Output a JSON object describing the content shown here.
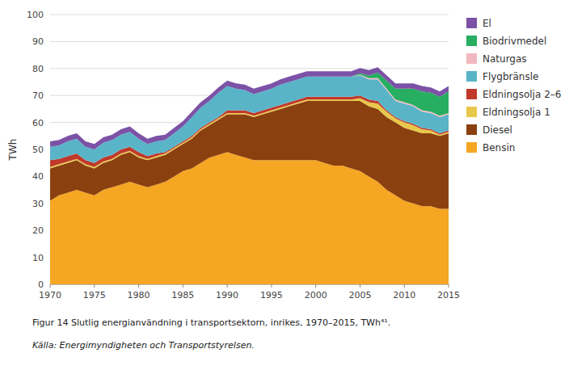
{
  "chart_data": {
    "type": "area",
    "stacked": true,
    "x": [
      1970,
      1971,
      1972,
      1973,
      1974,
      1975,
      1976,
      1977,
      1978,
      1979,
      1980,
      1981,
      1982,
      1983,
      1984,
      1985,
      1986,
      1987,
      1988,
      1989,
      1990,
      1991,
      1992,
      1993,
      1994,
      1995,
      1996,
      1997,
      1998,
      1999,
      2000,
      2001,
      2002,
      2003,
      2004,
      2005,
      2006,
      2007,
      2008,
      2009,
      2010,
      2011,
      2012,
      2013,
      2014,
      2015
    ],
    "series": [
      {
        "name": "Bensin",
        "color": "#f5a623",
        "values": [
          31,
          33,
          34,
          35,
          34,
          33,
          35,
          36,
          37,
          38,
          37,
          36,
          37,
          38,
          40,
          42,
          43,
          45,
          47,
          48,
          49,
          48,
          47,
          46,
          46,
          46,
          46,
          46,
          46,
          46,
          46,
          45,
          44,
          44,
          43,
          42,
          40,
          38,
          35,
          33,
          31,
          30,
          29,
          29,
          28,
          28
        ]
      },
      {
        "name": "Diesel",
        "color": "#8B4010",
        "values": [
          12,
          11,
          11,
          11,
          10,
          10,
          10,
          10,
          11,
          11,
          10,
          10,
          10,
          10,
          10,
          10,
          11,
          12,
          12,
          13,
          14,
          15,
          16,
          16,
          17,
          18,
          19,
          20,
          21,
          22,
          22,
          23,
          24,
          24,
          25,
          26,
          26,
          27,
          27,
          27,
          27,
          27,
          27,
          27,
          27,
          28
        ]
      },
      {
        "name": "Eldningsolja 1",
        "color": "#e8c84a",
        "values": [
          0.5,
          0.5,
          0.5,
          0.5,
          0.5,
          0.5,
          0.5,
          0.5,
          0.5,
          0.5,
          0.5,
          0.5,
          0.5,
          0.5,
          0.5,
          0.5,
          0.5,
          0.5,
          0.5,
          0.5,
          0.5,
          0.5,
          0.5,
          0.5,
          0.5,
          0.5,
          0.5,
          0.5,
          0.5,
          0.5,
          0.5,
          0.5,
          0.5,
          0.5,
          0.5,
          1.0,
          1.5,
          2.0,
          2.0,
          1.5,
          2.0,
          2.0,
          1.5,
          1.0,
          0.5,
          0.5
        ]
      },
      {
        "name": "Eldningsolja 2–6",
        "color": "#c0392b",
        "values": [
          2.5,
          2.0,
          2.0,
          2.0,
          1.5,
          1.5,
          1.5,
          1.5,
          1.5,
          1.5,
          1.5,
          1.0,
          1.0,
          0.5,
          0.5,
          0.5,
          0.5,
          0.5,
          0.5,
          0.5,
          1.0,
          1.0,
          1.0,
          1.0,
          1.0,
          1.0,
          1.0,
          1.0,
          1.0,
          1.0,
          1.0,
          1.0,
          1.0,
          1.0,
          1.0,
          1.0,
          1.0,
          1.0,
          0.5,
          0.5,
          0.5,
          0.5,
          0.5,
          0.5,
          0.5,
          0.5
        ]
      },
      {
        "name": "Flygbränsle",
        "color": "#5ab4c8",
        "values": [
          5.0,
          5.0,
          5.5,
          5.5,
          5.0,
          5.0,
          5.5,
          5.5,
          5.5,
          5.5,
          5.0,
          4.5,
          4.5,
          4.5,
          5.0,
          5.5,
          7.0,
          7.5,
          8.0,
          9.0,
          9.0,
          8.0,
          7.5,
          7.0,
          7.0,
          7.0,
          7.5,
          7.5,
          7.5,
          7.5,
          7.5,
          7.5,
          7.5,
          7.5,
          7.5,
          7.5,
          7.5,
          8.0,
          7.5,
          6.0,
          6.5,
          6.5,
          6.0,
          6.0,
          6.0,
          6.0
        ]
      },
      {
        "name": "Naturgas",
        "color": "#f2b8c0",
        "values": [
          0,
          0,
          0,
          0,
          0,
          0,
          0,
          0,
          0,
          0,
          0,
          0,
          0,
          0,
          0,
          0,
          0,
          0,
          0,
          0,
          0,
          0,
          0,
          0,
          0,
          0,
          0,
          0,
          0,
          0,
          0,
          0,
          0,
          0,
          0,
          0.2,
          0.4,
          0.5,
          0.5,
          0.5,
          0.5,
          0.5,
          0.5,
          0.5,
          0.5,
          0.5
        ]
      },
      {
        "name": "Biodrivmedel",
        "color": "#27ae60",
        "values": [
          0,
          0,
          0,
          0,
          0,
          0,
          0,
          0,
          0,
          0,
          0,
          0,
          0,
          0,
          0,
          0,
          0,
          0,
          0,
          0,
          0,
          0,
          0,
          0,
          0,
          0,
          0,
          0,
          0,
          0,
          0,
          0,
          0,
          0,
          0,
          0.5,
          1.0,
          2.0,
          3.0,
          4.0,
          5.0,
          6.0,
          7.0,
          7.0,
          7.0,
          8.0
        ]
      },
      {
        "name": "El",
        "color": "#7b52a6",
        "values": [
          2.0,
          2.0,
          2.0,
          2.0,
          2.0,
          2.0,
          2.0,
          2.0,
          2.0,
          2.0,
          2.0,
          2.0,
          2.0,
          2.0,
          2.0,
          2.0,
          2.0,
          2.0,
          2.0,
          2.0,
          2.0,
          2.0,
          2.0,
          2.0,
          2.0,
          2.0,
          2.0,
          2.0,
          2.0,
          2.0,
          2.0,
          2.0,
          2.0,
          2.0,
          2.0,
          2.0,
          2.0,
          2.0,
          2.0,
          2.0,
          2.0,
          2.0,
          2.0,
          2.0,
          2.0,
          2.0
        ]
      }
    ],
    "ylabel": "TWh",
    "xlim": [
      1970,
      2015
    ],
    "xticks": [
      1970,
      1975,
      1980,
      1985,
      1990,
      1995,
      2000,
      2005,
      2010,
      2015
    ],
    "ylim": [
      0,
      100
    ],
    "yticks": [
      0,
      10,
      20,
      30,
      40,
      50,
      60,
      70,
      80,
      90,
      100
    ],
    "grid": true,
    "legend": "right",
    "annotations": [
      "Figur 14 Slutlig energianvändning i transportsektorn, inrikes, 1970–2015, TWh⁴¹.",
      "Källa: Energimyndigheten och Transportstyrelsen."
    ]
  }
}
